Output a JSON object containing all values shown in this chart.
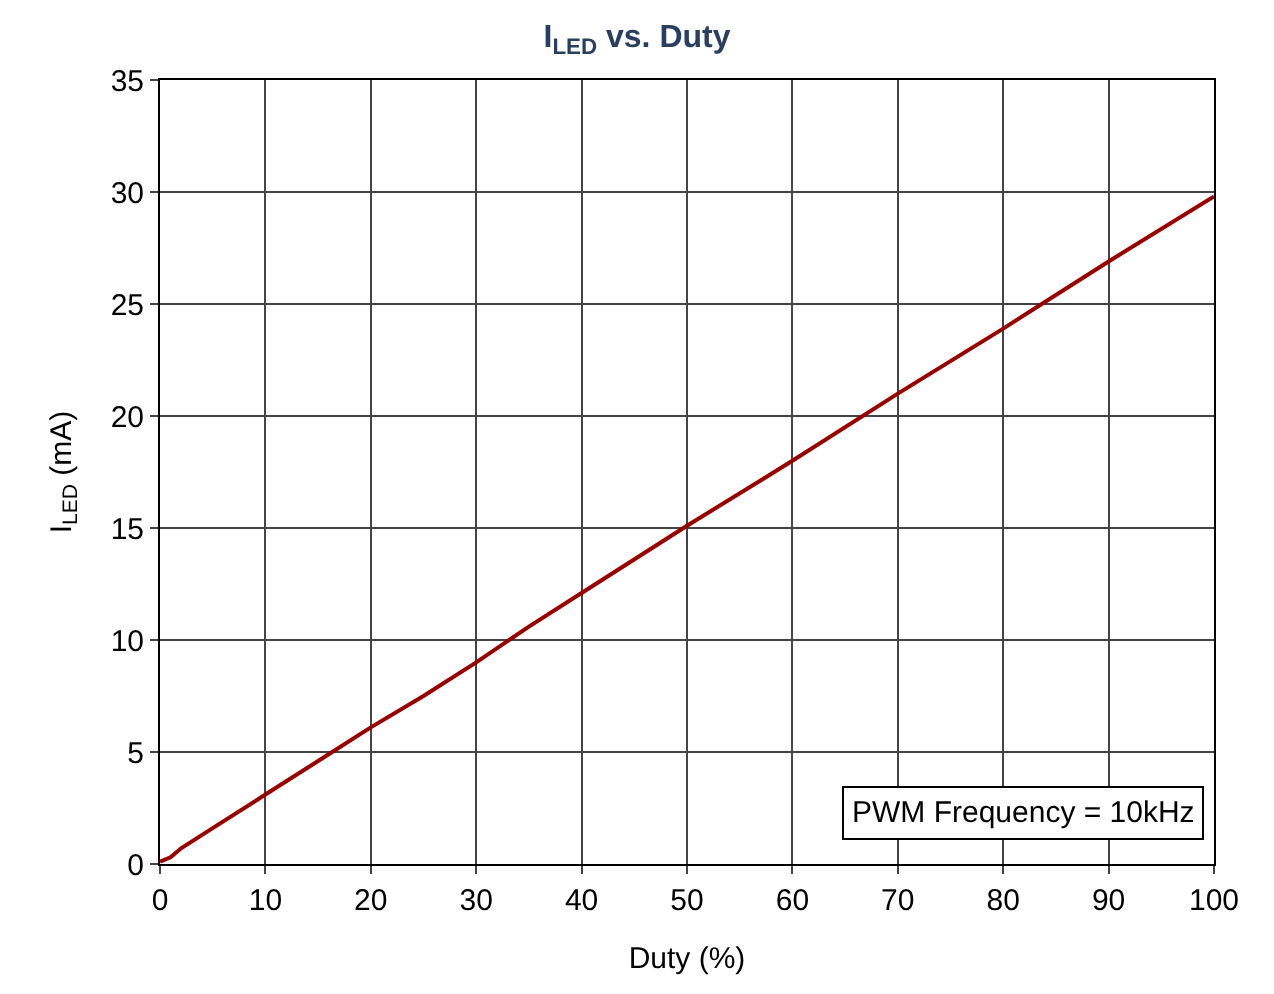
{
  "chart_data": {
    "type": "line",
    "title": "I$_{LED}$ vs. Duty",
    "xlabel": "Duty (%)",
    "ylabel": "I$_{LED}$ (mA)",
    "x": [
      0,
      1,
      2,
      5,
      10,
      15,
      20,
      25,
      30,
      35,
      40,
      50,
      60,
      70,
      80,
      90,
      100
    ],
    "series": [
      {
        "color": "#990000",
        "values": [
          0.1,
          0.3,
          0.7,
          1.6,
          3.1,
          4.6,
          6.1,
          7.5,
          9.0,
          10.6,
          12.1,
          15.1,
          18.0,
          21.0,
          23.9,
          26.9,
          29.8
        ]
      }
    ],
    "xlim": [
      0,
      100
    ],
    "xticks": [
      0,
      10,
      20,
      30,
      40,
      50,
      60,
      70,
      80,
      90,
      100
    ],
    "ylim": [
      0,
      35
    ],
    "yticks": [
      0,
      5,
      10,
      15,
      20,
      25,
      30,
      35
    ],
    "grid": true,
    "legend": false,
    "marker": "none",
    "line_style": "solid",
    "annotations": [
      "PWM Frequency = 10kHz"
    ]
  }
}
